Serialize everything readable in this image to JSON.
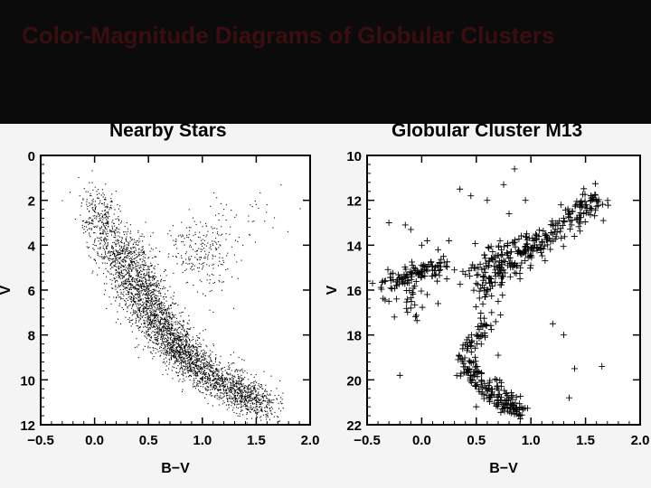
{
  "slide_title": "Color-Magnitude Diagrams of Globular Clusters",
  "chart_data": [
    {
      "type": "scatter",
      "title": "Nearby Stars",
      "xlabel": "B−V",
      "ylabel": "V",
      "xlim": [
        -0.5,
        2.0
      ],
      "ylim": [
        12,
        0
      ],
      "y_inverted": true,
      "xticks": [
        "−0.5",
        "0.0",
        "0.5",
        "1.0",
        "1.5",
        "2.0"
      ],
      "yticks": [
        "0",
        "2",
        "4",
        "6",
        "8",
        "10",
        "12"
      ],
      "marker": "dot",
      "grid": false,
      "points": [
        [
          0.02,
          1.6
        ],
        [
          0.05,
          2.1
        ],
        [
          0.1,
          2.6
        ],
        [
          0.0,
          3.2
        ],
        [
          0.08,
          3.5
        ],
        [
          0.12,
          4.0
        ],
        [
          0.15,
          4.3
        ],
        [
          0.2,
          4.6
        ],
        [
          0.1,
          3.9
        ],
        [
          0.18,
          4.9
        ],
        [
          0.25,
          5.2
        ],
        [
          0.28,
          5.6
        ],
        [
          0.3,
          5.9
        ],
        [
          0.35,
          6.2
        ],
        [
          0.38,
          6.5
        ],
        [
          0.42,
          6.8
        ],
        [
          0.45,
          7.0
        ],
        [
          0.5,
          7.3
        ],
        [
          0.55,
          7.6
        ],
        [
          0.58,
          7.9
        ],
        [
          0.62,
          8.1
        ],
        [
          0.65,
          8.3
        ],
        [
          0.7,
          8.6
        ],
        [
          0.75,
          8.8
        ],
        [
          0.8,
          9.0
        ],
        [
          0.85,
          9.3
        ],
        [
          0.9,
          9.5
        ],
        [
          0.95,
          9.7
        ],
        [
          1.0,
          9.9
        ],
        [
          1.05,
          10.1
        ],
        [
          1.1,
          10.3
        ],
        [
          1.2,
          10.5
        ],
        [
          1.3,
          10.7
        ],
        [
          1.4,
          10.9
        ],
        [
          1.5,
          11.1
        ],
        [
          1.55,
          11.3
        ],
        [
          1.6,
          11.2
        ],
        [
          0.5,
          6.2
        ],
        [
          0.6,
          6.6
        ],
        [
          0.7,
          7.2
        ],
        [
          0.85,
          4.8
        ],
        [
          0.95,
          4.4
        ],
        [
          1.0,
          4.2
        ],
        [
          1.05,
          3.9
        ],
        [
          1.1,
          4.5
        ],
        [
          1.15,
          4.1
        ],
        [
          1.2,
          2.4
        ],
        [
          1.6,
          2.2
        ],
        [
          0.3,
          3.0
        ],
        [
          0.4,
          4.0
        ]
      ],
      "sequences": [
        {
          "name": "",
          "path": [
            [
              0.0,
              1.8
            ],
            [
              0.15,
              3.9
            ],
            [
              0.3,
              5.4
            ],
            [
              0.45,
              6.7
            ],
            [
              0.6,
              7.8
            ],
            [
              0.8,
              8.8
            ],
            [
              1.0,
              9.6
            ],
            [
              1.2,
              10.2
            ],
            [
              1.4,
              10.7
            ],
            [
              1.6,
              11.1
            ]
          ],
          "n": 3000,
          "spread": [
            0.1,
            0.4
          ]
        },
        {
          "name": "",
          "path": [
            [
              0.3,
              3.8
            ],
            [
              0.5,
              5.5
            ],
            [
              0.6,
              7.0
            ],
            [
              0.75,
              8.2
            ],
            [
              0.95,
              9.4
            ]
          ],
          "n": 900,
          "spread": [
            0.08,
            0.4
          ]
        },
        {
          "name": "",
          "path": [
            [
              0.9,
              3.5
            ],
            [
              1.0,
              4.4
            ],
            [
              1.1,
              5.2
            ]
          ],
          "n": 220,
          "spread": [
            0.14,
            0.7
          ]
        },
        {
          "name": "",
          "path": [
            [
              1.1,
              2.3
            ],
            [
              1.4,
              3.5
            ],
            [
              1.6,
              2.4
            ]
          ],
          "n": 40,
          "spread": [
            0.1,
            0.6
          ]
        }
      ]
    },
    {
      "type": "scatter",
      "title": "Globular Cluster M13",
      "xlabel": "B−V",
      "ylabel": "V",
      "xlim": [
        -0.5,
        2.0
      ],
      "ylim": [
        22,
        10
      ],
      "y_inverted": true,
      "xticks": [
        "−0.5",
        "0.0",
        "0.5",
        "1.0",
        "1.5",
        "2.0"
      ],
      "yticks": [
        "10",
        "12",
        "14",
        "16",
        "18",
        "20",
        "22"
      ],
      "marker": "plus",
      "grid": false,
      "points": [
        [
          -0.3,
          13.0
        ],
        [
          -0.15,
          13.1
        ],
        [
          -0.1,
          13.3
        ],
        [
          0.0,
          14.0
        ],
        [
          0.05,
          13.8
        ],
        [
          0.15,
          14.2
        ],
        [
          0.2,
          14.5
        ],
        [
          0.25,
          13.8
        ],
        [
          0.35,
          11.5
        ],
        [
          0.45,
          11.8
        ],
        [
          0.6,
          12.0
        ],
        [
          0.75,
          11.3
        ],
        [
          0.85,
          10.6
        ],
        [
          0.95,
          12.0
        ],
        [
          0.8,
          12.6
        ],
        [
          -0.45,
          15.7
        ],
        [
          -0.3,
          16.5
        ],
        [
          -0.25,
          17.2
        ],
        [
          -0.1,
          16.8
        ],
        [
          0.05,
          16.2
        ],
        [
          0.15,
          16.6
        ],
        [
          0.3,
          15.1
        ],
        [
          0.4,
          15.3
        ],
        [
          0.6,
          16.0
        ],
        [
          0.7,
          16.5
        ],
        [
          0.9,
          15.5
        ],
        [
          1.2,
          17.5
        ],
        [
          1.3,
          18.0
        ],
        [
          1.4,
          19.5
        ],
        [
          1.65,
          19.4
        ],
        [
          1.35,
          20.8
        ],
        [
          -0.2,
          19.8
        ],
        [
          0.5,
          21.2
        ],
        [
          0.7,
          18.9
        ],
        [
          1.6,
          12.0
        ],
        [
          1.55,
          11.8
        ],
        [
          1.45,
          12.3
        ],
        [
          1.3,
          12.8
        ],
        [
          1.2,
          13.1
        ],
        [
          1.05,
          13.7
        ]
      ],
      "sequences": [
        {
          "name": "",
          "path": [
            [
              -0.35,
              15.7
            ],
            [
              -0.2,
              15.5
            ],
            [
              -0.05,
              15.3
            ],
            [
              0.1,
              15.1
            ],
            [
              0.2,
              14.9
            ]
          ],
          "n": 110,
          "spread": [
            0.05,
            0.25
          ]
        },
        {
          "name": "",
          "path": [
            [
              -0.15,
              15.8
            ],
            [
              -0.1,
              16.5
            ],
            [
              -0.05,
              17.2
            ]
          ],
          "n": 18,
          "spread": [
            0.05,
            0.3
          ]
        },
        {
          "name": "",
          "path": [
            [
              0.55,
              16.0
            ],
            [
              0.6,
              15.5
            ],
            [
              0.75,
              14.9
            ],
            [
              0.95,
              14.3
            ],
            [
              1.2,
              13.5
            ],
            [
              1.4,
              12.7
            ],
            [
              1.55,
              12.1
            ],
            [
              1.62,
              12.0
            ]
          ],
          "n": 230,
          "spread": [
            0.07,
            0.3
          ]
        },
        {
          "name": "",
          "path": [
            [
              0.5,
              15.3
            ],
            [
              0.65,
              14.8
            ],
            [
              0.8,
              14.4
            ],
            [
              0.95,
              14.0
            ],
            [
              1.1,
              13.8
            ]
          ],
          "n": 90,
          "spread": [
            0.08,
            0.35
          ]
        },
        {
          "name": "",
          "path": [
            [
              0.65,
              17.0
            ],
            [
              0.55,
              17.8
            ],
            [
              0.45,
              18.4
            ],
            [
              0.4,
              19.0
            ],
            [
              0.42,
              19.6
            ],
            [
              0.5,
              20.1
            ],
            [
              0.6,
              20.6
            ],
            [
              0.7,
              21.0
            ],
            [
              0.8,
              21.3
            ],
            [
              0.88,
              21.5
            ]
          ],
          "n": 180,
          "spread": [
            0.04,
            0.2
          ]
        },
        {
          "name": "",
          "path": [
            [
              0.65,
              20.1
            ],
            [
              0.75,
              20.6
            ],
            [
              0.85,
              21.0
            ],
            [
              0.9,
              21.4
            ]
          ],
          "n": 40,
          "spread": [
            0.04,
            0.15
          ]
        }
      ]
    }
  ]
}
